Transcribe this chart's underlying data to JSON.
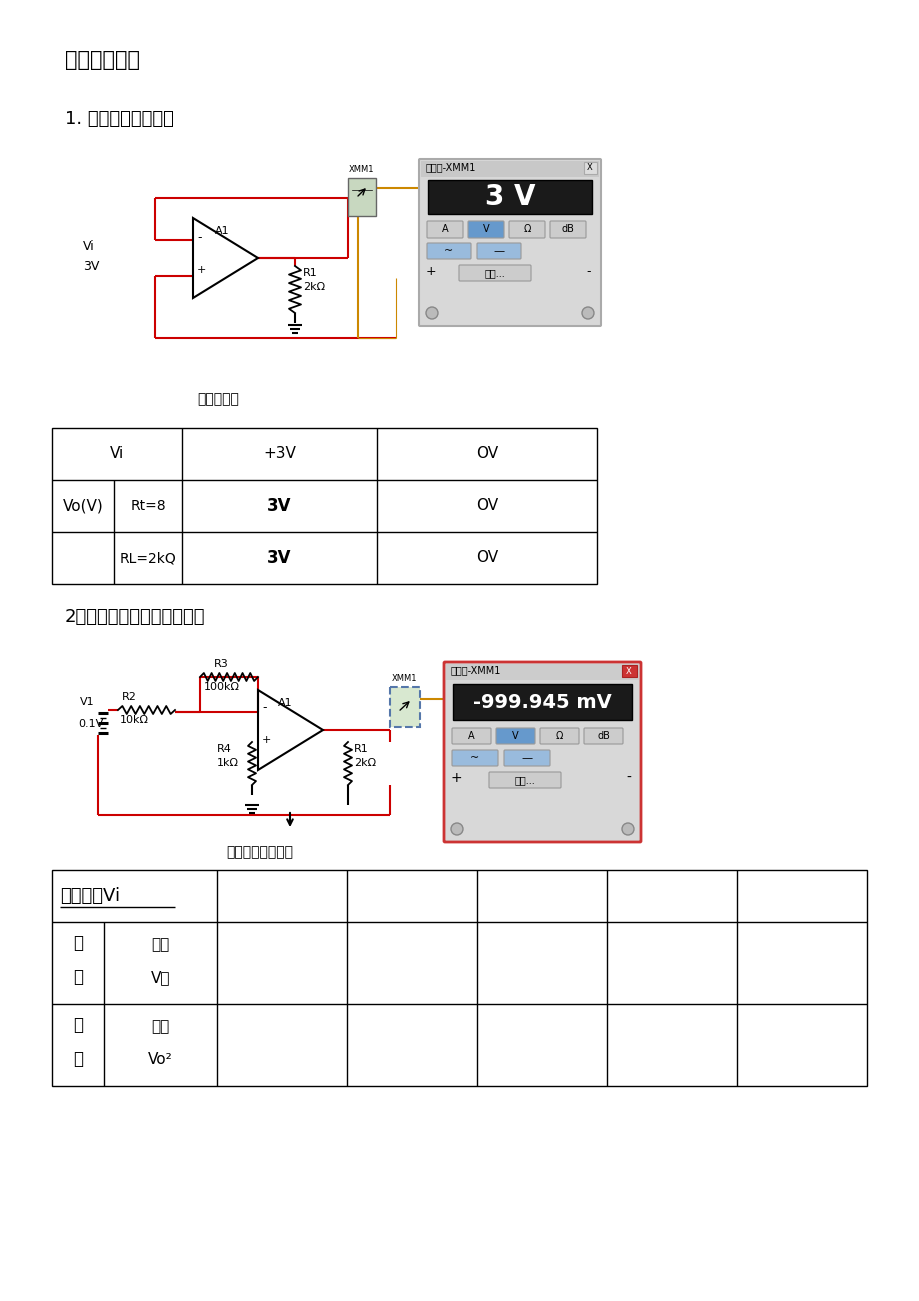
{
  "title1": "五、实验仿真",
  "section1_title": "1. 电压跟随器原理图",
  "circuit1_caption": "电压跟随器",
  "section2_title": "2、反相输入放大电路原理图",
  "circuit2_caption": "反相输入放大电路",
  "bg_color": "#ffffff",
  "red": "#cc0000",
  "orange": "#cc8800",
  "gray": "#888888",
  "darkgray": "#555555"
}
